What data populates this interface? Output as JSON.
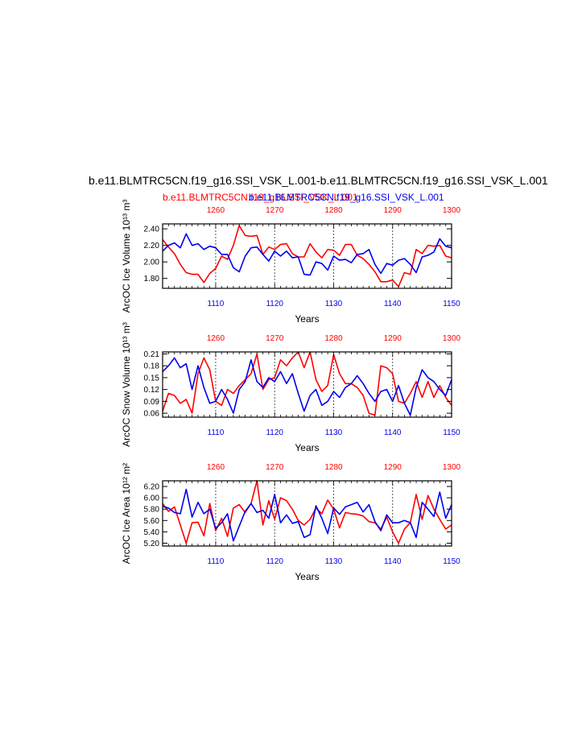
{
  "page": {
    "title": "b.e11.BLMTRC5CN.f19_g16.SSI_VSK_L.001-b.e11.BLMTRC5CN.f19_g16.SSI_VSK_L.001",
    "legend_red": "b.e11.BLMTRC5CN.f19_g16.SSI_VSK_L.001",
    "legend_blue": "b.e11.BLMTRC5CN.f19_g16.SSI_VSK_L.001"
  },
  "colors": {
    "red": "#ff0000",
    "blue": "#0000ee",
    "axis": "#000000",
    "grid": "#444444"
  },
  "chart_data": [
    {
      "type": "line",
      "ylabel": "ArcOC Ice Volume 10¹³ m³",
      "xlabel": "Years",
      "x_bottom": {
        "ticks": [
          1110,
          1120,
          1130,
          1140,
          1150
        ],
        "range": [
          1101,
          1150
        ]
      },
      "x_top": {
        "ticks": [
          1260,
          1270,
          1280,
          1290,
          1300
        ],
        "range": [
          1251,
          1300
        ]
      },
      "ylim": [
        1.68,
        2.46
      ],
      "yticks": [
        "2.40",
        "2.20",
        "2.00",
        "1.80"
      ],
      "ytick_values": [
        2.4,
        2.2,
        2.0,
        1.8
      ],
      "vgrid_dashed": [
        1260,
        1270,
        1280,
        1290
      ],
      "series": [
        {
          "color": "red",
          "axis": "top",
          "values": [
            2.27,
            2.18,
            2.1,
            1.97,
            1.87,
            1.85,
            1.85,
            1.75,
            1.86,
            1.92,
            2.07,
            2.03,
            2.2,
            2.44,
            2.32,
            2.31,
            2.32,
            2.09,
            2.18,
            2.15,
            2.21,
            2.22,
            2.1,
            2.06,
            2.06,
            2.22,
            2.12,
            2.05,
            2.15,
            2.14,
            2.08,
            2.21,
            2.21,
            2.08,
            2.04,
            1.97,
            1.88,
            1.76,
            1.76,
            1.78,
            1.7,
            1.87,
            1.85,
            2.15,
            2.1,
            2.2,
            2.19,
            2.2,
            2.07,
            2.05
          ]
        },
        {
          "color": "blue",
          "axis": "bottom",
          "values": [
            2.13,
            2.2,
            2.23,
            2.17,
            2.34,
            2.2,
            2.22,
            2.15,
            2.19,
            2.17,
            2.09,
            2.09,
            1.93,
            1.88,
            2.07,
            2.17,
            2.18,
            2.09,
            2.01,
            2.13,
            2.07,
            2.13,
            2.05,
            2.06,
            1.85,
            1.84,
            2.0,
            1.98,
            1.9,
            2.07,
            2.02,
            2.03,
            1.99,
            2.09,
            2.1,
            2.15,
            1.97,
            1.86,
            1.98,
            1.96,
            2.02,
            2.04,
            1.97,
            1.87,
            2.06,
            2.08,
            2.12,
            2.28,
            2.19,
            2.17
          ]
        }
      ]
    },
    {
      "type": "line",
      "ylabel": "ArcOC Snow Volume 10¹³ m³",
      "xlabel": "Years",
      "x_bottom": {
        "ticks": [
          1110,
          1120,
          1130,
          1140,
          1150
        ],
        "range": [
          1101,
          1150
        ]
      },
      "x_top": {
        "ticks": [
          1260,
          1270,
          1280,
          1290,
          1300
        ],
        "range": [
          1251,
          1300
        ]
      },
      "ylim": [
        0.05,
        0.215
      ],
      "yticks": [
        "0.21",
        "0.18",
        "0.15",
        "0.12",
        "0.09",
        "0.06"
      ],
      "ytick_values": [
        0.21,
        0.18,
        0.15,
        0.12,
        0.09,
        0.06
      ],
      "vgrid_dashed": [
        1260,
        1270,
        1280,
        1290
      ],
      "series": [
        {
          "color": "red",
          "axis": "top",
          "values": [
            0.065,
            0.11,
            0.105,
            0.085,
            0.095,
            0.06,
            0.16,
            0.2,
            0.17,
            0.09,
            0.08,
            0.12,
            0.11,
            0.13,
            0.145,
            0.16,
            0.21,
            0.12,
            0.145,
            0.15,
            0.195,
            0.18,
            0.2,
            0.215,
            0.175,
            0.215,
            0.145,
            0.115,
            0.13,
            0.208,
            0.16,
            0.135,
            0.135,
            0.125,
            0.105,
            0.06,
            0.055,
            0.18,
            0.175,
            0.16,
            0.09,
            0.085,
            0.11,
            0.14,
            0.1,
            0.14,
            0.1,
            0.13,
            0.1,
            0.08
          ]
        },
        {
          "color": "blue",
          "axis": "bottom",
          "values": [
            0.165,
            0.18,
            0.2,
            0.175,
            0.185,
            0.12,
            0.18,
            0.125,
            0.085,
            0.09,
            0.12,
            0.095,
            0.06,
            0.12,
            0.14,
            0.195,
            0.14,
            0.125,
            0.15,
            0.14,
            0.165,
            0.135,
            0.16,
            0.11,
            0.065,
            0.105,
            0.12,
            0.08,
            0.09,
            0.115,
            0.1,
            0.125,
            0.135,
            0.155,
            0.135,
            0.11,
            0.09,
            0.115,
            0.12,
            0.09,
            0.13,
            0.085,
            0.055,
            0.125,
            0.17,
            0.15,
            0.14,
            0.12,
            0.105,
            0.145
          ]
        }
      ]
    },
    {
      "type": "line",
      "ylabel": "ArcOC Ice Area 10¹² m²",
      "xlabel": "Years",
      "x_bottom": {
        "ticks": [
          1110,
          1120,
          1130,
          1140,
          1150
        ],
        "range": [
          1101,
          1150
        ]
      },
      "x_top": {
        "ticks": [
          1260,
          1270,
          1280,
          1290,
          1300
        ],
        "range": [
          1251,
          1300
        ]
      },
      "ylim": [
        5.15,
        6.3
      ],
      "yticks": [
        "6.20",
        "6.00",
        "5.80",
        "5.60",
        "5.40",
        "5.20"
      ],
      "ytick_values": [
        6.2,
        6.0,
        5.8,
        5.6,
        5.4,
        5.2
      ],
      "vgrid_dashed": [
        1260,
        1270,
        1280,
        1290
      ],
      "series": [
        {
          "color": "red",
          "axis": "top",
          "values": [
            5.9,
            5.76,
            5.84,
            5.52,
            5.2,
            5.56,
            5.57,
            5.33,
            5.9,
            5.42,
            5.64,
            5.32,
            5.82,
            5.88,
            5.74,
            5.9,
            6.3,
            5.52,
            5.95,
            5.62,
            6.0,
            5.95,
            5.8,
            5.6,
            5.52,
            5.62,
            5.82,
            5.72,
            5.96,
            5.8,
            5.47,
            5.74,
            5.72,
            5.71,
            5.68,
            5.58,
            5.56,
            5.45,
            5.66,
            5.4,
            5.2,
            5.45,
            5.56,
            6.06,
            5.62,
            6.04,
            5.8,
            5.62,
            5.45,
            5.52
          ]
        },
        {
          "color": "blue",
          "axis": "bottom",
          "values": [
            5.85,
            5.82,
            5.74,
            5.72,
            6.15,
            5.66,
            5.92,
            5.72,
            5.8,
            5.46,
            5.56,
            5.72,
            5.24,
            5.5,
            5.76,
            5.9,
            5.74,
            5.78,
            5.64,
            6.06,
            5.56,
            5.7,
            5.55,
            5.58,
            5.3,
            5.35,
            5.86,
            5.64,
            5.37,
            5.82,
            5.71,
            5.84,
            5.88,
            5.92,
            5.75,
            5.88,
            5.58,
            5.42,
            5.7,
            5.56,
            5.56,
            5.6,
            5.56,
            5.3,
            5.92,
            5.8,
            5.67,
            6.1,
            5.64,
            5.88
          ]
        }
      ]
    }
  ]
}
